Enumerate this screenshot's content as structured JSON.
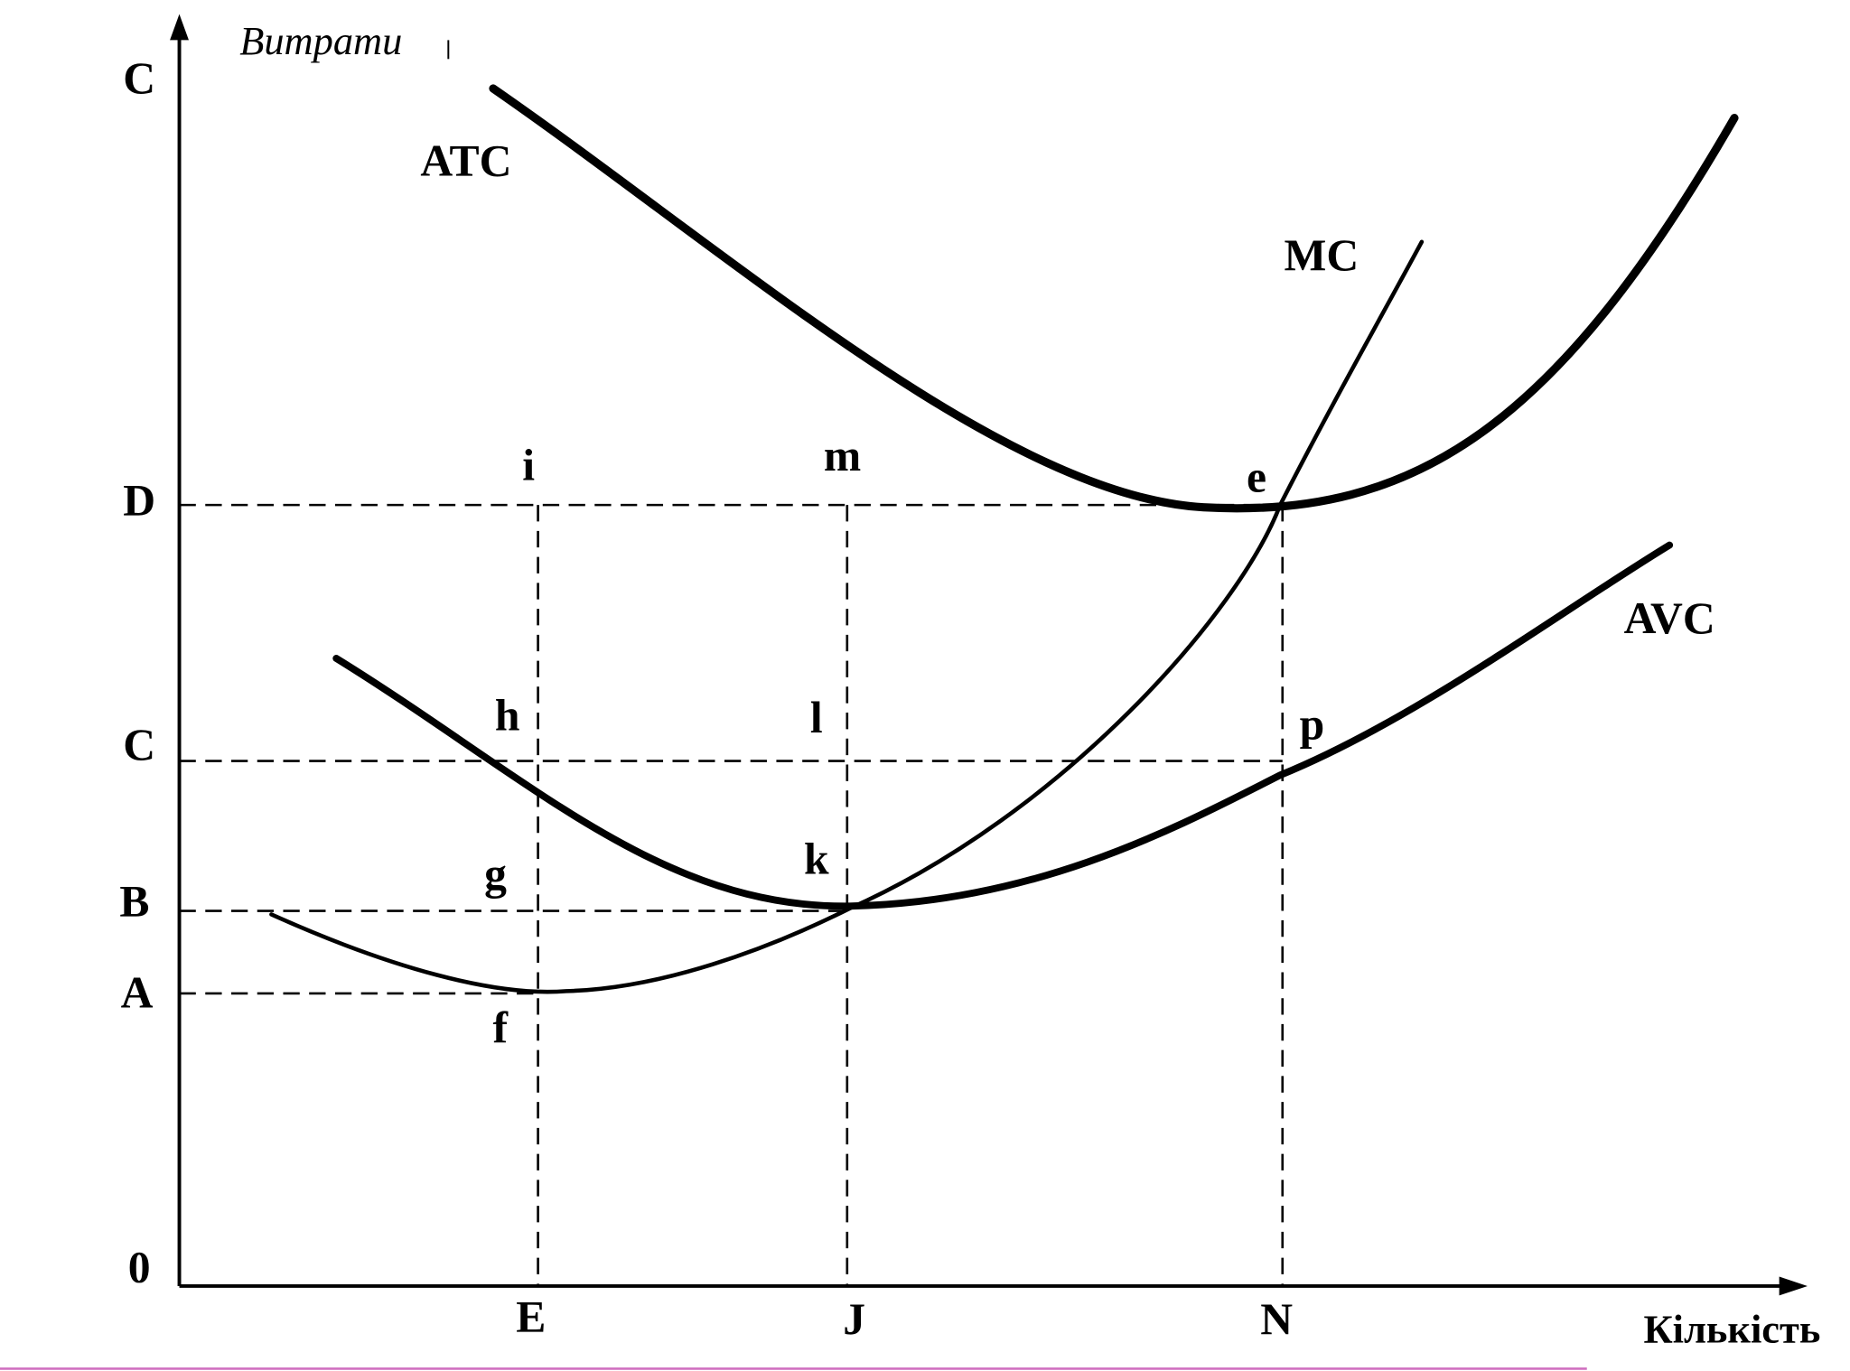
{
  "y_axis": {
    "title": "Витрати",
    "labels": [
      "C",
      "D",
      "C",
      "B",
      "A",
      "0"
    ]
  },
  "x_axis": {
    "title": "Кількість",
    "labels": [
      "E",
      "J",
      "N"
    ]
  },
  "curves": [
    "ATC",
    "MC",
    "AVC"
  ],
  "points": [
    "i",
    "m",
    "e",
    "h",
    "l",
    "p",
    "g",
    "k",
    "f"
  ]
}
